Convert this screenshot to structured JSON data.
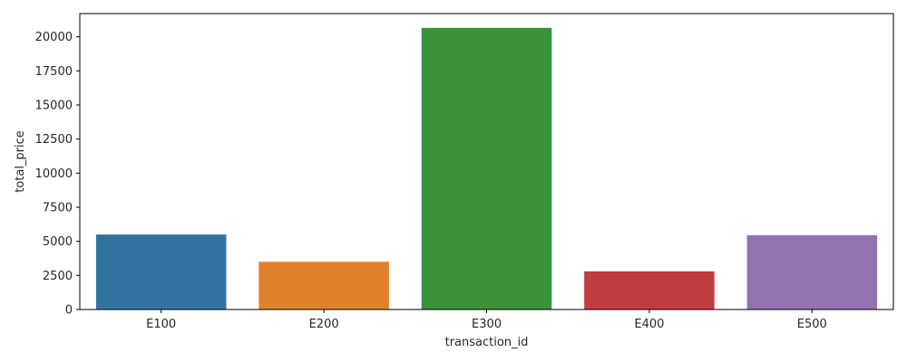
{
  "chart_data": {
    "type": "bar",
    "xlabel": "transaction_id",
    "ylabel": "total_price",
    "categories": [
      "E100",
      "E200",
      "E300",
      "E400",
      "E500"
    ],
    "values": [
      5500,
      3500,
      20650,
      2800,
      5450
    ],
    "colors": [
      "#3274a1",
      "#e1812c",
      "#3a923a",
      "#c03d3e",
      "#9372b2"
    ],
    "ylim": [
      0,
      21700
    ],
    "yticks": [
      0,
      2500,
      5000,
      7500,
      10000,
      12500,
      15000,
      17500,
      20000
    ],
    "ytick_labels": [
      "0",
      "2500",
      "5000",
      "7500",
      "10000",
      "12500",
      "15000",
      "17500",
      "20000"
    ],
    "grid": false,
    "legend": "none"
  }
}
